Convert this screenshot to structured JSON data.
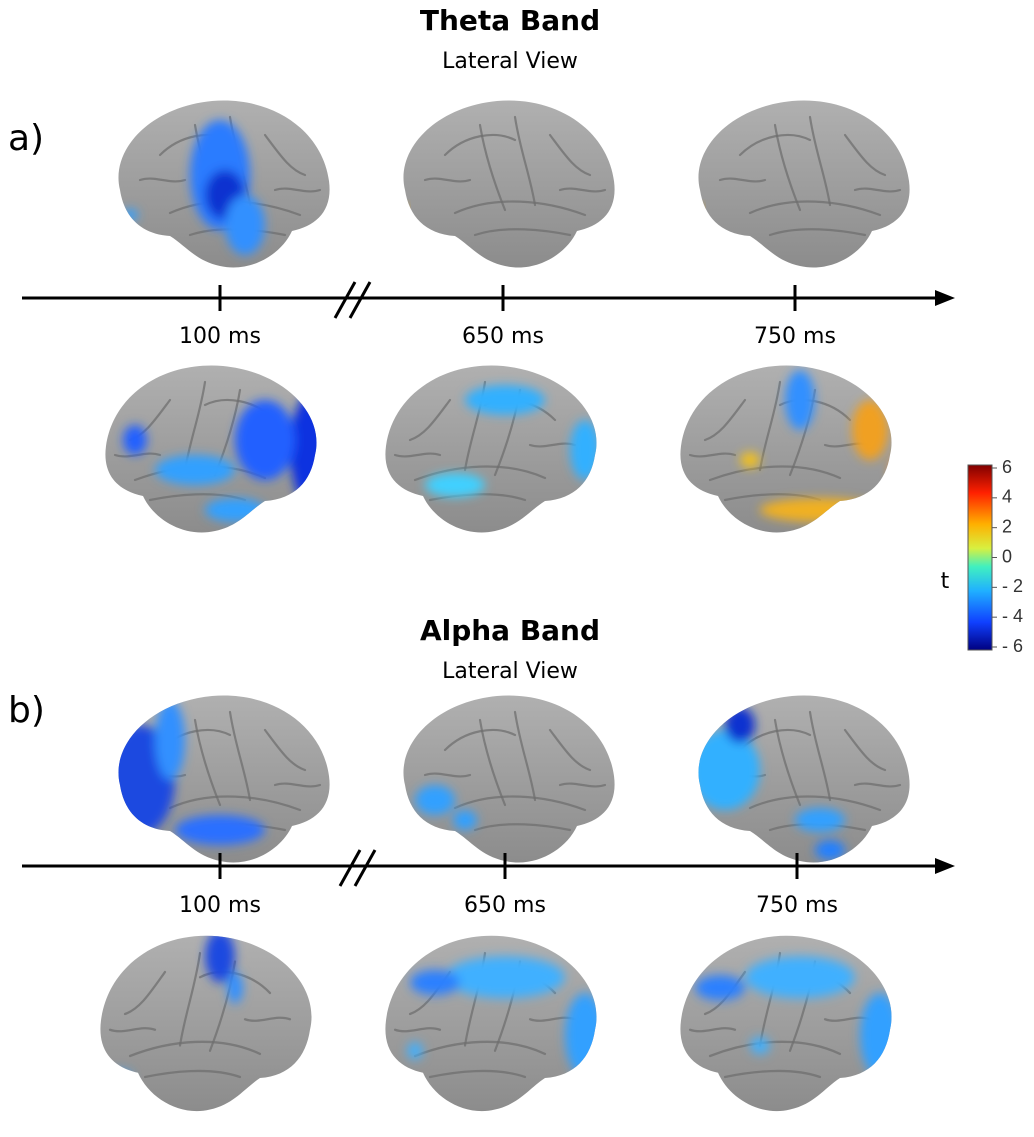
{
  "panels": [
    {
      "label": "a)",
      "title": "Theta Band",
      "subtitle": "Lateral View",
      "times": [
        "100 ms",
        "650 ms",
        "750 ms"
      ]
    },
    {
      "label": "b)",
      "title": "Alpha Band",
      "subtitle": "Lateral View",
      "times": [
        "100 ms",
        "650 ms",
        "750 ms"
      ]
    }
  ],
  "colorbar": {
    "label": "t",
    "lim": [
      -6,
      6
    ],
    "ticks": [
      6,
      4,
      2,
      0,
      {
        "value": -2,
        "label": "- 2"
      },
      {
        "value": -4,
        "label": "- 4"
      },
      {
        "value": -6,
        "label": "- 6"
      }
    ]
  }
}
